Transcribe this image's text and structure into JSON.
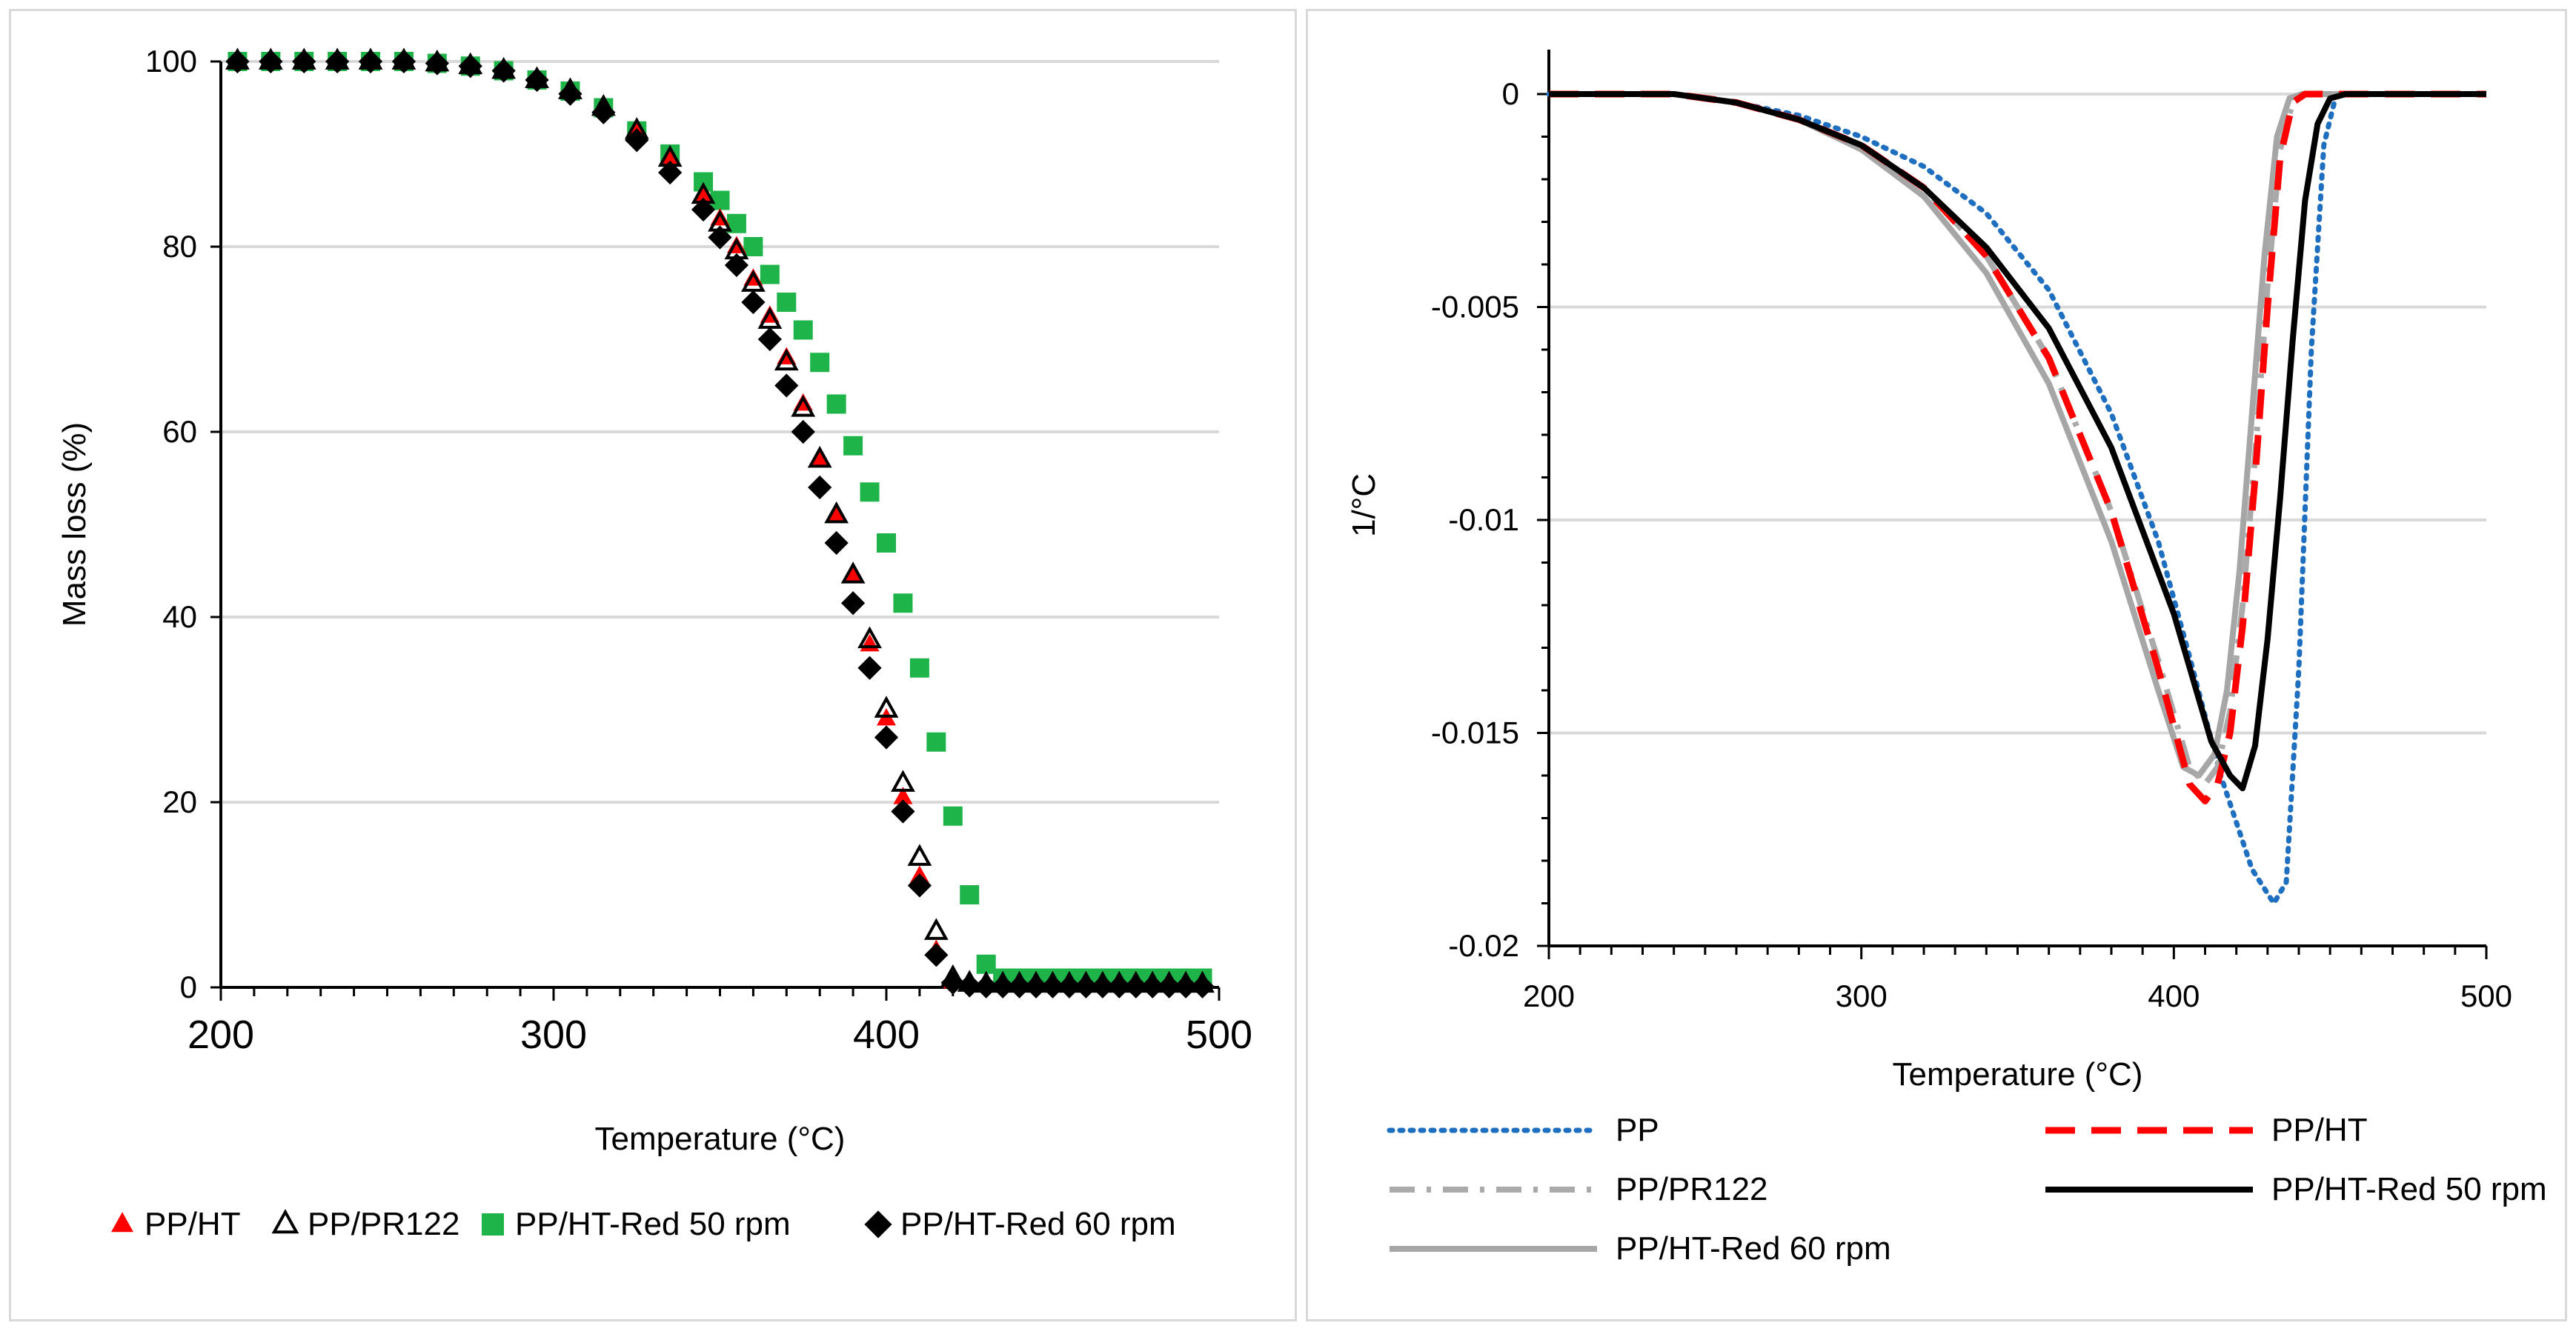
{
  "chart_data": [
    {
      "type": "scatter",
      "title": "",
      "xlabel": "Temperature (°C)",
      "ylabel": "Mass loss (%)",
      "xlim": [
        200,
        500
      ],
      "ylim": [
        0,
        100
      ],
      "xticks": [
        "200",
        "300",
        "400",
        "500"
      ],
      "yticks": [
        "0",
        "20",
        "40",
        "60",
        "80",
        "100"
      ],
      "grid": "horizontal",
      "legend_position": "bottom",
      "series": [
        {
          "name": "PP/HT",
          "marker": "triangle-filled",
          "color": "#ff0000",
          "x": [
            205,
            215,
            225,
            235,
            245,
            255,
            265,
            275,
            285,
            295,
            305,
            315,
            325,
            335,
            345,
            350,
            355,
            360,
            365,
            370,
            375,
            380,
            385,
            390,
            395,
            400,
            405,
            410,
            415,
            420,
            425,
            430,
            435,
            440,
            445,
            450,
            455,
            460,
            465,
            470,
            475,
            480,
            485,
            490,
            495
          ],
          "y": [
            100,
            100,
            100,
            100,
            100,
            100,
            99.8,
            99.5,
            99,
            98,
            96.8,
            95,
            92.5,
            89.5,
            85.5,
            83,
            80,
            76.5,
            72.5,
            68,
            63,
            57,
            51,
            44.5,
            37,
            29,
            20.5,
            12,
            4,
            0.6,
            0.3,
            0.2,
            0.2,
            0.2,
            0.2,
            0.2,
            0.2,
            0.2,
            0.2,
            0.2,
            0.2,
            0.2,
            0.2,
            0.2,
            0.2
          ]
        },
        {
          "name": "PP/PR122",
          "marker": "triangle-open",
          "color": "#000000",
          "x": [
            205,
            215,
            225,
            235,
            245,
            255,
            265,
            275,
            285,
            295,
            305,
            315,
            325,
            335,
            345,
            350,
            355,
            360,
            365,
            370,
            375,
            380,
            385,
            390,
            395,
            400,
            405,
            410,
            415,
            420,
            425,
            430,
            435,
            440,
            445,
            450,
            455,
            460,
            465,
            470,
            475,
            480,
            485,
            490,
            495
          ],
          "y": [
            100,
            100,
            100,
            100,
            100,
            100,
            99.8,
            99.5,
            99,
            98,
            96.8,
            95,
            92.5,
            89.5,
            85.5,
            82.5,
            79.5,
            76,
            72,
            67.5,
            62.5,
            57,
            51,
            44.5,
            37.5,
            30,
            22,
            14,
            6,
            1,
            0.4,
            0.3,
            0.3,
            0.3,
            0.3,
            0.3,
            0.3,
            0.3,
            0.3,
            0.3,
            0.3,
            0.3,
            0.3,
            0.3,
            0.3
          ]
        },
        {
          "name": "PP/HT-Red 50 rpm",
          "marker": "square",
          "color": "#1fb44a",
          "x": [
            205,
            215,
            225,
            235,
            245,
            255,
            265,
            275,
            285,
            295,
            305,
            315,
            325,
            335,
            345,
            350,
            355,
            360,
            365,
            370,
            375,
            380,
            385,
            390,
            395,
            400,
            405,
            410,
            415,
            420,
            425,
            430,
            435,
            440,
            445,
            450,
            455,
            460,
            465,
            470,
            475,
            480,
            485,
            490,
            495
          ],
          "y": [
            100,
            100,
            100,
            100,
            100,
            100,
            99.8,
            99.5,
            99,
            98,
            96.8,
            95,
            92.5,
            90,
            87,
            85,
            82.5,
            80,
            77,
            74,
            71,
            67.5,
            63,
            58.5,
            53.5,
            48,
            41.5,
            34.5,
            26.5,
            18.5,
            10,
            2.5,
            1,
            1,
            1,
            1,
            1,
            1,
            1,
            1,
            1,
            1,
            1,
            1,
            1
          ]
        },
        {
          "name": "PP/HT-Red 60 rpm",
          "marker": "diamond",
          "color": "#000000",
          "x": [
            205,
            215,
            225,
            235,
            245,
            255,
            265,
            275,
            285,
            295,
            305,
            315,
            325,
            335,
            345,
            350,
            355,
            360,
            365,
            370,
            375,
            380,
            385,
            390,
            395,
            400,
            405,
            410,
            415,
            420,
            425,
            430,
            435,
            440,
            445,
            450,
            455,
            460,
            465,
            470,
            475,
            480,
            485,
            490,
            495
          ],
          "y": [
            100,
            100,
            100,
            100,
            100,
            100,
            99.8,
            99.5,
            99,
            98,
            96.5,
            94.5,
            91.5,
            88,
            84,
            81,
            78,
            74,
            70,
            65,
            60,
            54,
            48,
            41.5,
            34.5,
            27,
            19,
            11,
            3.5,
            0.5,
            0.2,
            0.1,
            0.1,
            0.1,
            0.1,
            0.1,
            0.1,
            0.1,
            0.1,
            0.1,
            0.1,
            0.1,
            0.1,
            0.1,
            0.1
          ]
        }
      ]
    },
    {
      "type": "line",
      "title": "",
      "xlabel": "Temperature (°C)",
      "ylabel": "1/°C",
      "xlim": [
        200,
        500
      ],
      "ylim": [
        -0.02,
        0.0015
      ],
      "xticks": [
        "200",
        "300",
        "400",
        "500"
      ],
      "yticks": [
        "0",
        "-0.005",
        "-0.01",
        "-0.015",
        "-0.02"
      ],
      "yvalues": [
        0,
        -0.005,
        -0.01,
        -0.015,
        -0.02
      ],
      "grid": "horizontal",
      "legend_position": "bottom",
      "series": [
        {
          "name": "PP",
          "style": "dotted",
          "color": "#1f6fc0",
          "x": [
            200,
            240,
            260,
            280,
            300,
            320,
            340,
            360,
            380,
            395,
            405,
            415,
            425,
            432,
            436,
            440,
            444,
            448,
            452,
            500
          ],
          "y": [
            0,
            0,
            -0.0002,
            -0.0005,
            -0.001,
            -0.0017,
            -0.0028,
            -0.0046,
            -0.0075,
            -0.0105,
            -0.0132,
            -0.016,
            -0.0182,
            -0.019,
            -0.0185,
            -0.0135,
            -0.006,
            -0.0012,
            0,
            0
          ]
        },
        {
          "name": "PP/HT",
          "style": "dashed",
          "color": "#ff0000",
          "x": [
            200,
            240,
            260,
            280,
            300,
            320,
            340,
            360,
            380,
            395,
            405,
            410,
            414,
            418,
            422,
            426,
            430,
            434,
            438,
            442,
            500
          ],
          "y": [
            0,
            0,
            -0.0002,
            -0.0006,
            -0.0012,
            -0.0022,
            -0.0038,
            -0.0062,
            -0.0098,
            -0.0135,
            -0.0162,
            -0.0166,
            -0.0162,
            -0.015,
            -0.0125,
            -0.009,
            -0.005,
            -0.0015,
            -0.0002,
            0,
            0
          ]
        },
        {
          "name": "PP/PR122",
          "style": "dash-dot",
          "color": "#aaaaaa",
          "x": [
            200,
            240,
            260,
            280,
            300,
            320,
            340,
            360,
            380,
            395,
            405,
            410,
            414,
            418,
            422,
            426,
            430,
            434,
            438,
            442,
            500
          ],
          "y": [
            0,
            0,
            -0.0002,
            -0.0006,
            -0.0012,
            -0.0022,
            -0.0038,
            -0.0062,
            -0.0098,
            -0.0133,
            -0.0158,
            -0.0162,
            -0.0158,
            -0.0145,
            -0.012,
            -0.0085,
            -0.0045,
            -0.0013,
            -0.0002,
            0,
            0
          ]
        },
        {
          "name": "PP/HT-Red 50 rpm",
          "style": "solid",
          "color": "#000000",
          "x": [
            200,
            240,
            260,
            280,
            300,
            320,
            340,
            360,
            380,
            400,
            412,
            418,
            422,
            426,
            430,
            434,
            438,
            442,
            446,
            450,
            455,
            500
          ],
          "y": [
            0,
            0,
            -0.0002,
            -0.0006,
            -0.0012,
            -0.0022,
            -0.0036,
            -0.0055,
            -0.0083,
            -0.0122,
            -0.0152,
            -0.016,
            -0.0163,
            -0.0153,
            -0.0128,
            -0.0095,
            -0.0058,
            -0.0025,
            -0.0007,
            -0.0001,
            0,
            0
          ]
        },
        {
          "name": "PP/HT-Red 60 rpm",
          "style": "solid",
          "color": "#a6a6a6",
          "x": [
            200,
            240,
            260,
            280,
            300,
            320,
            340,
            360,
            380,
            395,
            403,
            408,
            413,
            417,
            421,
            425,
            429,
            433,
            437,
            441,
            500
          ],
          "y": [
            0,
            0,
            -0.0002,
            -0.0006,
            -0.0013,
            -0.0024,
            -0.0042,
            -0.0068,
            -0.0105,
            -0.014,
            -0.0158,
            -0.016,
            -0.0155,
            -0.014,
            -0.0112,
            -0.0075,
            -0.0038,
            -0.001,
            -0.0001,
            0,
            0
          ]
        }
      ]
    }
  ]
}
